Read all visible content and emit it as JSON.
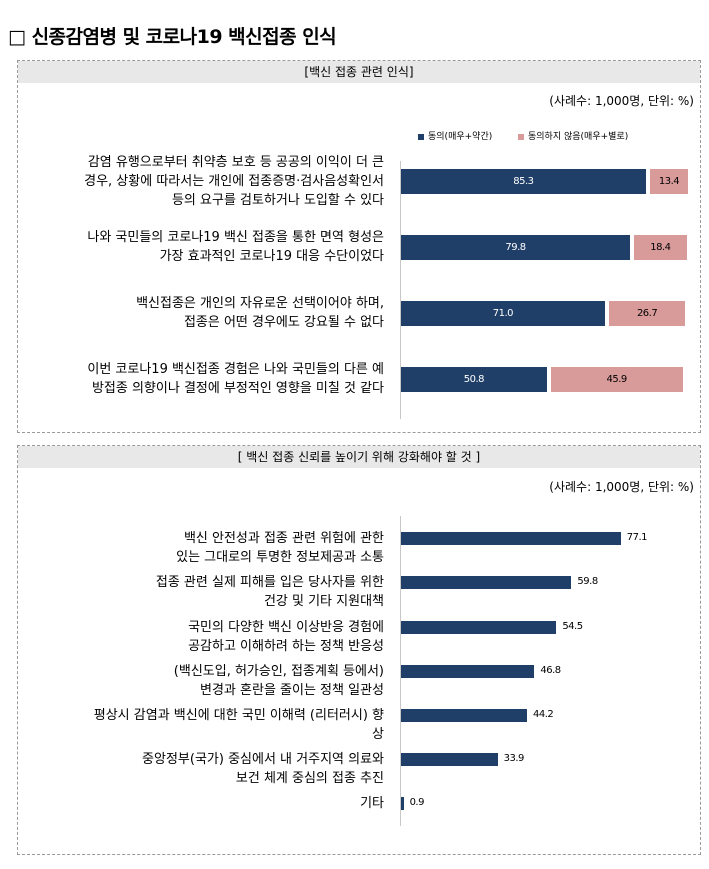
{
  "title": "□ 신종감염병 및 코로나19 백신접종 인식",
  "colors": {
    "agree": "#1f3f68",
    "disagree": "#d99a9a",
    "bar": "#1f3f68"
  },
  "chart_data": [
    {
      "type": "bar",
      "orientation": "horizontal",
      "stacked": true,
      "title": "[백신 접종 관련 인식]",
      "unit_note": "(사례수: 1,000명, 단위: %)",
      "categories": [
        [
          "감염 유행으로부터 취약층 보호 등 공공의 이익이 더 큰",
          "경우, 상황에 따라서는 개인에 접종증명·검사음성확인서",
          "등의 요구를 검토하거나 도입할 수 있다"
        ],
        [
          "나와 국민들의 코로나19 백신 접종을 통한 면역 형성은",
          "가장 효과적인 코로나19 대응 수단이었다"
        ],
        [
          "백신접종은 개인의 자유로운 선택이어야 하며,",
          "접종은 어떤 경우에도 강요될 수 없다"
        ],
        [
          "이번 코로나19 백신접종 경험은 나와 국민들의 다른 예",
          "방접종 의향이나 결정에 부정적인 영향을 미칠 것 같다"
        ]
      ],
      "series": [
        {
          "name": "동의(매우+약간)",
          "values": [
            85.3,
            79.8,
            71.0,
            50.8
          ],
          "labels": [
            "85.3",
            "79.8",
            "71.0",
            "50.8"
          ]
        },
        {
          "name": "동의하지 않음(매우+별로)",
          "values": [
            13.4,
            18.4,
            26.7,
            45.9
          ],
          "labels": [
            "13.4",
            "18.4",
            "26.7",
            "45.9"
          ]
        }
      ]
    },
    {
      "type": "bar",
      "orientation": "horizontal",
      "title": "[ 백신 접종 신뢰를 높이기 위해 강화해야 할 것 ]",
      "unit_note": "(사례수: 1,000명, 단위: %)",
      "categories": [
        [
          "백신 안전성과 접종 관련 위험에 관한",
          "있는 그대로의 투명한 정보제공과 소통"
        ],
        [
          "접종 관련 실제 피해를  입은 당사자를 위한",
          "건강 및 기타 지원대책"
        ],
        [
          "국민의 다양한 백신 이상반응 경험에",
          "공감하고 이해하려 하는 정책 반응성"
        ],
        [
          "(백신도입, 허가승인, 접종계획 등에서)",
          "변경과 혼란을 줄이는 정책 일관성"
        ],
        [
          "평상시 감염과 백신에 대한 국민 이해력 (리터러시) 향",
          "상"
        ],
        [
          "중앙정부(국가) 중심에서 내 거주지역 의료와",
          "보건 체계 중심의 접종 추진"
        ],
        [
          "기타"
        ]
      ],
      "values": [
        77.1,
        59.8,
        54.5,
        46.8,
        44.2,
        33.9,
        0.9
      ],
      "labels": [
        "77.1",
        "59.8",
        "54.5",
        "46.8",
        "44.2",
        "33.9",
        "0.9"
      ]
    }
  ]
}
